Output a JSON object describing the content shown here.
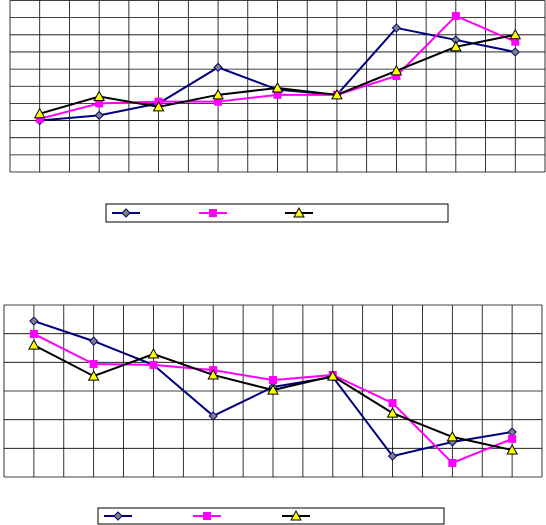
{
  "chart_data": [
    {
      "type": "line",
      "categories": [
        null,
        null,
        null,
        null,
        null,
        null,
        null,
        null,
        null
      ],
      "ylim": [
        0,
        10
      ],
      "yticks": [
        0,
        1,
        2,
        3,
        4,
        5,
        6,
        7,
        8,
        9,
        10
      ],
      "grid": true,
      "legend": "bottom",
      "series": [
        {
          "color": "#000080",
          "marker": "diamond",
          "marker_color": "#808080",
          "values": [
            3.0,
            3.3,
            4.0,
            6.1,
            4.8,
            4.5,
            8.4,
            7.7,
            7.0
          ]
        },
        {
          "color": "#ff00ff",
          "marker": "square",
          "marker_color": "#ff00ff",
          "values": [
            3.1,
            4.0,
            4.1,
            4.1,
            4.5,
            4.5,
            5.6,
            9.1,
            7.6
          ]
        },
        {
          "color": "#000000",
          "marker": "triangle",
          "marker_color": "#ffff00",
          "values": [
            3.4,
            4.4,
            3.8,
            4.5,
            4.9,
            4.5,
            5.9,
            7.3,
            8.0
          ]
        }
      ]
    },
    {
      "type": "line",
      "categories": [
        null,
        null,
        null,
        null,
        null,
        null,
        null,
        null,
        null
      ],
      "ylim": [
        0,
        6
      ],
      "yticks": [
        0,
        1,
        2,
        3,
        4,
        5,
        6
      ],
      "grid": true,
      "legend": "bottom",
      "series": [
        {
          "color": "#000080",
          "marker": "diamond",
          "marker_color": "#808080",
          "values": [
            5.44,
            4.74,
            3.91,
            2.13,
            3.14,
            3.49,
            0.73,
            1.22,
            1.57
          ]
        },
        {
          "color": "#ff00ff",
          "marker": "square",
          "marker_color": "#ff00ff",
          "values": [
            4.99,
            3.94,
            3.91,
            3.73,
            3.38,
            3.56,
            2.58,
            0.49,
            1.33
          ]
        },
        {
          "color": "#000000",
          "marker": "triangle",
          "marker_color": "#ffff00",
          "values": [
            4.6,
            3.52,
            4.29,
            3.56,
            3.03,
            3.52,
            2.23,
            1.4,
            0.94
          ]
        }
      ]
    }
  ]
}
